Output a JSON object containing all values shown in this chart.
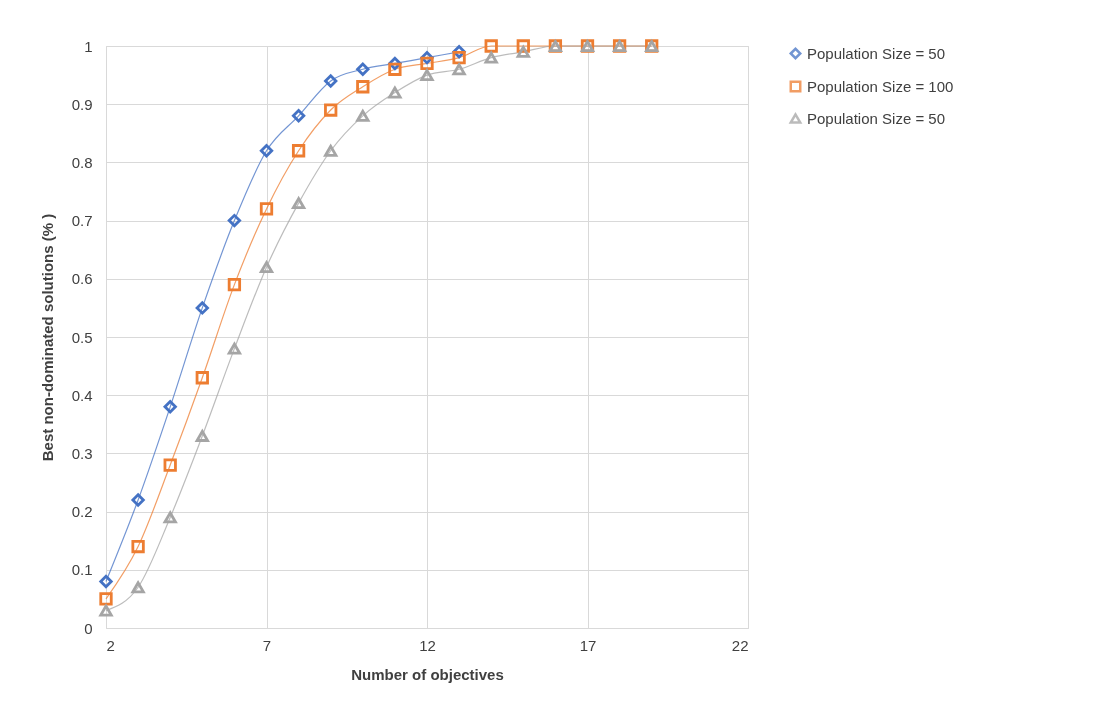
{
  "chart_data": {
    "type": "line",
    "xlabel": "Number of objectives",
    "ylabel": "Best non-dominated solutions (% )",
    "x": [
      2,
      3,
      4,
      5,
      6,
      7,
      8,
      9,
      10,
      11,
      12,
      13,
      14,
      15,
      16,
      17,
      18,
      19
    ],
    "series": [
      {
        "name": "Population Size = 50",
        "color": "#4472c4",
        "marker": "diamond",
        "values": [
          0.08,
          0.22,
          0.38,
          0.55,
          0.7,
          0.82,
          0.88,
          0.94,
          0.96,
          0.97,
          0.98,
          0.99,
          null,
          null,
          null,
          null,
          null,
          null
        ]
      },
      {
        "name": "Population Size = 100",
        "color": "#ed7d31",
        "marker": "square",
        "values": [
          0.05,
          0.14,
          0.28,
          0.43,
          0.59,
          0.72,
          0.82,
          0.89,
          0.93,
          0.96,
          0.97,
          0.98,
          1,
          1,
          1,
          1,
          1,
          1
        ]
      },
      {
        "name": "Population Size = 50",
        "color": "#a5a5a5",
        "marker": "triangle",
        "values": [
          0.03,
          0.07,
          0.19,
          0.33,
          0.48,
          0.62,
          0.73,
          0.82,
          0.88,
          0.92,
          0.95,
          0.96,
          0.98,
          0.99,
          1,
          1,
          1,
          1
        ]
      }
    ],
    "xlim": [
      2,
      22
    ],
    "xticks": [
      2,
      7,
      12,
      17,
      22
    ],
    "ylim": [
      0,
      1
    ],
    "yticks": [
      0,
      0.1,
      0.2,
      0.3,
      0.4,
      0.5,
      0.6,
      0.7,
      0.8,
      0.9,
      1
    ],
    "grid": true,
    "legend": "right",
    "line_style": "solid"
  }
}
